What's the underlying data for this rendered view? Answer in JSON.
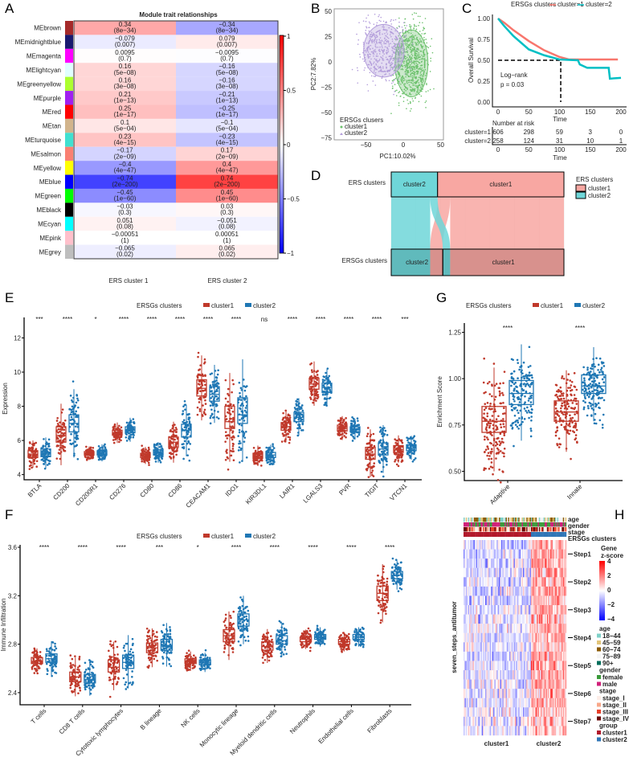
{
  "panels": {
    "a": "A",
    "b": "B",
    "c": "C",
    "d": "D",
    "e": "E",
    "f": "F",
    "g": "G",
    "h": "H"
  },
  "colors": {
    "cluster1": "#c0392b",
    "cluster2": "#1f77b4",
    "surv1": "#f8766d",
    "surv2": "#00bfc4",
    "pca1": "#6cc16c",
    "pca2": "#b39ddb"
  },
  "chart_data": [
    {
      "id": "A",
      "type": "heatmap",
      "title": "Module trait relationships",
      "columns": [
        "ERS cluster 1",
        "ERS cluster 2"
      ],
      "colorbar": {
        "range": [
          -1,
          1
        ],
        "ticks": [
          "1",
          "0.5",
          "0",
          "−0.5",
          "−1"
        ]
      },
      "rows": [
        {
          "name": "MEbrown",
          "color": "#a52a2a",
          "cor": [
            0.34,
            -0.34
          ],
          "labels": [
            "0.34",
            "−0.34"
          ],
          "p": "(8e−34)"
        },
        {
          "name": "MEmidnightblue",
          "color": "#191970",
          "cor": [
            -0.079,
            0.079
          ],
          "labels": [
            "−0.079",
            "0.079"
          ],
          "p": "(0.007)"
        },
        {
          "name": "MEmagenta",
          "color": "#ff00ff",
          "cor": [
            0.0095,
            -0.0095
          ],
          "labels": [
            "0.0095",
            "−0.0095"
          ],
          "p": "(0.7)"
        },
        {
          "name": "MElightcyan",
          "color": "#e0ffff",
          "cor": [
            0.16,
            -0.16
          ],
          "labels": [
            "0.16",
            "−0.16"
          ],
          "p": "(5e−08)"
        },
        {
          "name": "MEgreenyellow",
          "color": "#adff2f",
          "cor": [
            0.16,
            -0.16
          ],
          "labels": [
            "0.16",
            "−0.16"
          ],
          "p": "(3e−08)"
        },
        {
          "name": "MEpurple",
          "color": "#a020f0",
          "cor": [
            0.21,
            -0.21
          ],
          "labels": [
            "0.21",
            "−0.21"
          ],
          "p": "(1e−13)"
        },
        {
          "name": "MEred",
          "color": "#ff0000",
          "cor": [
            0.25,
            -0.25
          ],
          "labels": [
            "0.25",
            "−0.25"
          ],
          "p": "(1e−17)"
        },
        {
          "name": "MEtan",
          "color": "#d2b48c",
          "cor": [
            0.1,
            -0.1
          ],
          "labels": [
            "0.1",
            "−0.1"
          ],
          "p": "(5e−04)"
        },
        {
          "name": "MEturquoise",
          "color": "#40e0d0",
          "cor": [
            0.23,
            -0.23
          ],
          "labels": [
            "0.23",
            "−0.23"
          ],
          "p": "(4e−15)"
        },
        {
          "name": "MEsalmon",
          "color": "#fa8072",
          "cor": [
            -0.17,
            0.17
          ],
          "labels": [
            "−0.17",
            "0.17"
          ],
          "p": "(2e−09)"
        },
        {
          "name": "MEyellow",
          "color": "#ffff00",
          "cor": [
            -0.4,
            0.4
          ],
          "labels": [
            "−0.4",
            "0.4"
          ],
          "p": "(4e−47)"
        },
        {
          "name": "MEblue",
          "color": "#0000ff",
          "cor": [
            -0.74,
            0.74
          ],
          "labels": [
            "−0.74",
            "0.74"
          ],
          "p": "(2e−200)"
        },
        {
          "name": "MEgreen",
          "color": "#00ff00",
          "cor": [
            -0.45,
            0.45
          ],
          "labels": [
            "−0.45",
            "0.45"
          ],
          "p": "(1e−60)"
        },
        {
          "name": "MEblack",
          "color": "#000000",
          "cor": [
            -0.03,
            0.03
          ],
          "labels": [
            "−0.03",
            "0.03"
          ],
          "p": "(0.3)"
        },
        {
          "name": "MEcyan",
          "color": "#00ffff",
          "cor": [
            0.051,
            -0.051
          ],
          "labels": [
            "0.051",
            "−0.051"
          ],
          "p": "(0.08)"
        },
        {
          "name": "MEpink",
          "color": "#ffc0cb",
          "cor": [
            -0.00051,
            0.00051
          ],
          "labels": [
            "−0.00051",
            "0.00051"
          ],
          "p": "(1)"
        },
        {
          "name": "MEgrey",
          "color": "#bebebe",
          "cor": [
            -0.065,
            0.065
          ],
          "labels": [
            "−0.065",
            "0.065"
          ],
          "p": "(0.02)"
        }
      ]
    },
    {
      "id": "B",
      "type": "scatter",
      "xlabel": "PC1:10.02%",
      "ylabel": "PC2:7.82%",
      "xticks": [
        "−50",
        "0",
        "50"
      ],
      "xtick_values": [
        -50,
        0,
        50
      ],
      "yticks": [
        "50",
        "25",
        "0",
        "−25",
        "−50",
        "−75"
      ],
      "ytick_values": [
        50,
        25,
        0,
        -25,
        -50,
        -75
      ],
      "xlim": [
        -95,
        55
      ],
      "ylim": [
        -78,
        51
      ],
      "legend": {
        "title": "ERSGs clusers",
        "items": [
          "cluster1",
          "cluster2"
        ],
        "position": "bottom-left"
      },
      "ellipses": [
        {
          "name": "cluster1",
          "center": [
            11,
            -1.5
          ],
          "radii": [
            22,
            33
          ]
        },
        {
          "name": "cluster2",
          "center": [
            -26,
            11
          ],
          "radii": [
            27,
            26
          ]
        }
      ]
    },
    {
      "id": "C",
      "type": "line",
      "xlabel": "Time",
      "ylabel": "Overall Survival",
      "xticks": [
        "0",
        "50",
        "100",
        "150",
        "200"
      ],
      "xtick_values": [
        0,
        50,
        100,
        150,
        200
      ],
      "yticks": [
        "1.00",
        "0.75",
        "0.50",
        "0.25",
        "0.00"
      ],
      "ytick_values": [
        1,
        0.75,
        0.5,
        0.25,
        0
      ],
      "legend": {
        "title": "ERSGs clusters",
        "items": [
          "cluster=1",
          "cluster=2"
        ],
        "position": "top"
      },
      "annotation": [
        "Log−rank",
        "p = 0.03"
      ],
      "median_time": 102,
      "series": [
        {
          "name": "cluster=1",
          "points": [
            [
              0,
              1
            ],
            [
              10,
              0.95
            ],
            [
              25,
              0.86
            ],
            [
              50,
              0.73
            ],
            [
              75,
              0.62
            ],
            [
              100,
              0.54
            ],
            [
              115,
              0.51
            ],
            [
              150,
              0.51
            ],
            [
              195,
              0.51
            ]
          ]
        },
        {
          "name": "cluster=2",
          "points": [
            [
              0,
              1
            ],
            [
              10,
              0.91
            ],
            [
              25,
              0.79
            ],
            [
              50,
              0.63
            ],
            [
              75,
              0.56
            ],
            [
              100,
              0.51
            ],
            [
              130,
              0.5
            ],
            [
              133,
              0.45
            ],
            [
              145,
              0.41
            ],
            [
              180,
              0.41
            ],
            [
              182,
              0.28
            ],
            [
              200,
              0.29
            ]
          ]
        }
      ],
      "risk_table": {
        "title": "Number at risk",
        "xlabel": "Time",
        "rows": [
          {
            "label": "cluster=1",
            "values": [
              "606",
              "298",
              "59",
              "3",
              "0"
            ]
          },
          {
            "label": "cluster=2",
            "values": [
              "258",
              "124",
              "31",
              "10",
              "1"
            ]
          }
        ]
      }
    },
    {
      "id": "D",
      "type": "sankey",
      "axes": [
        "ERS clusters",
        "ERSGs clusters"
      ],
      "legend": {
        "title": "ERS clusters",
        "items": [
          "cluster1",
          "cluster2"
        ]
      },
      "nodes_top": [
        "cluster2",
        "cluster1"
      ],
      "nodes_bottom": [
        "cluster2",
        "cluster1"
      ],
      "flows": [
        {
          "from": "cluster2",
          "to": "cluster2",
          "n": 195
        },
        {
          "from": "cluster2",
          "to": "cluster1",
          "n": 37
        },
        {
          "from": "cluster1",
          "to": "cluster2",
          "n": 63
        },
        {
          "from": "cluster1",
          "to": "cluster1",
          "n": 569
        }
      ]
    },
    {
      "id": "E",
      "type": "box",
      "ylabel": "Expression",
      "yticks": [
        "4",
        "6",
        "8",
        "10",
        "12"
      ],
      "ytick_values": [
        4,
        6,
        8,
        10,
        12
      ],
      "ylim": [
        3.7,
        13.2
      ],
      "legend": {
        "title": "ERSGs clusters",
        "items": [
          "cluster1",
          "cluster2"
        ]
      },
      "categories": [
        "BTLA",
        "CD200",
        "CD200R1",
        "CD276",
        "CD80",
        "CD86",
        "CEACAM1",
        "IDO1",
        "KIR3DL1",
        "LAIR1",
        "LGALS3",
        "PVR",
        "TIGIT",
        "VTCN1"
      ],
      "significance": [
        "***",
        "****",
        "*",
        "****",
        "****",
        "****",
        "****",
        "****",
        "ns",
        "****",
        "****",
        "****",
        "****",
        "***"
      ],
      "series": [
        {
          "name": "cluster1",
          "quartiles": [
            [
              5.0,
              5.2,
              5.4
            ],
            [
              5.9,
              6.3,
              6.8
            ],
            [
              5.15,
              5.25,
              5.35
            ],
            [
              6.3,
              6.45,
              6.6
            ],
            [
              5.0,
              5.1,
              5.25
            ],
            [
              5.6,
              5.9,
              6.2
            ],
            [
              8.6,
              9.05,
              9.55
            ],
            [
              6.7,
              7.1,
              8.0
            ],
            [
              4.95,
              5.1,
              5.25
            ],
            [
              6.6,
              6.8,
              7.05
            ],
            [
              9.0,
              9.3,
              9.65
            ],
            [
              6.55,
              6.7,
              6.9
            ],
            [
              4.9,
              5.2,
              5.6
            ],
            [
              5.3,
              5.45,
              5.7
            ]
          ]
        },
        {
          "name": "cluster2",
          "quartiles": [
            [
              5.05,
              5.3,
              5.5
            ],
            [
              6.5,
              7.0,
              7.5
            ],
            [
              5.15,
              5.3,
              5.4
            ],
            [
              6.45,
              6.6,
              6.8
            ],
            [
              5.15,
              5.3,
              5.45
            ],
            [
              6.2,
              6.6,
              6.95
            ],
            [
              8.3,
              8.7,
              9.15
            ],
            [
              7.0,
              7.5,
              8.5
            ],
            [
              5.0,
              5.15,
              5.3
            ],
            [
              7.1,
              7.35,
              7.65
            ],
            [
              8.8,
              9.1,
              9.35
            ],
            [
              6.5,
              6.65,
              6.8
            ],
            [
              5.15,
              5.5,
              5.85
            ],
            [
              5.4,
              5.55,
              5.75
            ]
          ]
        }
      ]
    },
    {
      "id": "F",
      "type": "box",
      "ylabel": "Immune Infiltration",
      "yticks": [
        "2.4",
        "2.8",
        "3.2",
        "3.6"
      ],
      "ytick_values": [
        2.4,
        2.8,
        3.2,
        3.6
      ],
      "ylim": [
        2.3,
        3.62
      ],
      "legend": {
        "title": "ERSGs clusters",
        "items": [
          "cluster1",
          "cluster2"
        ]
      },
      "categories": [
        "T cells",
        "CD8 T cells",
        "Cytotoxic lymphocytes",
        "B lineage",
        "NK cells",
        "Monocytic lineage",
        "Myeloid dendritic cells",
        "Neutrophils",
        "Endothelial cells",
        "Fibroblasts"
      ],
      "significance": [
        "****",
        "****",
        "****",
        "***",
        "*",
        "****",
        "****",
        "****",
        "****",
        "****"
      ],
      "series": [
        {
          "name": "cluster1",
          "quartiles": [
            [
              2.64,
              2.66,
              2.69
            ],
            [
              2.49,
              2.53,
              2.57
            ],
            [
              2.57,
              2.61,
              2.67
            ],
            [
              2.73,
              2.77,
              2.81
            ],
            [
              2.64,
              2.66,
              2.68
            ],
            [
              2.82,
              2.87,
              2.92
            ],
            [
              2.75,
              2.78,
              2.82
            ],
            [
              2.82,
              2.84,
              2.86
            ],
            [
              2.8,
              2.82,
              2.84
            ],
            [
              3.16,
              3.22,
              3.28
            ]
          ]
        },
        {
          "name": "cluster2",
          "quartiles": [
            [
              2.65,
              2.68,
              2.72
            ],
            [
              2.48,
              2.51,
              2.55
            ],
            [
              2.6,
              2.65,
              2.71
            ],
            [
              2.75,
              2.79,
              2.84
            ],
            [
              2.63,
              2.65,
              2.67
            ],
            [
              2.95,
              3.0,
              3.05
            ],
            [
              2.8,
              2.83,
              2.87
            ],
            [
              2.84,
              2.86,
              2.88
            ],
            [
              2.84,
              2.86,
              2.88
            ],
            [
              3.34,
              3.37,
              3.4
            ]
          ]
        }
      ]
    },
    {
      "id": "G",
      "type": "box",
      "ylabel": "Enrichment Score",
      "yticks": [
        "0.50",
        "0.75",
        "1.00",
        "1.25"
      ],
      "ytick_values": [
        0.5,
        0.75,
        1.0,
        1.25
      ],
      "ylim": [
        0.45,
        1.3
      ],
      "legend": {
        "title": "ERSGs clusters",
        "items": [
          "cluster1",
          "cluster2"
        ]
      },
      "categories": [
        "Adaptive",
        "Innate"
      ],
      "significance": [
        "****",
        "****"
      ],
      "series": [
        {
          "name": "cluster1",
          "quartiles": [
            [
              0.71,
              0.77,
              0.85
            ],
            [
              0.77,
              0.82,
              0.88
            ]
          ]
        },
        {
          "name": "cluster2",
          "quartiles": [
            [
              0.86,
              0.92,
              0.99
            ],
            [
              0.92,
              0.96,
              1.02
            ]
          ]
        }
      ]
    },
    {
      "id": "H",
      "type": "heatmap",
      "ylabel": "seven_steps_antitumor",
      "columns": [
        "cluster1",
        "cluster2"
      ],
      "annotation_rows": [
        "age",
        "gender",
        "stage",
        "ERSGs clusters"
      ],
      "rows": [
        "Step1",
        "Step2",
        "Step3",
        "Step4",
        "Step5",
        "Step6",
        "Step7"
      ],
      "mean_z": [
        [
          -0.4,
          0.8
        ],
        [
          -0.3,
          0.9
        ],
        [
          -0.35,
          0.8
        ],
        [
          -0.2,
          0.7
        ],
        [
          -0.3,
          0.9
        ],
        [
          -0.25,
          0.8
        ],
        [
          -0.2,
          0.7
        ]
      ],
      "colorbar": {
        "title": [
          "Gene",
          "z-score"
        ],
        "ticks": [
          "4",
          "2",
          "0",
          "−2",
          "−4"
        ],
        "range": [
          -4,
          4
        ]
      },
      "legends": [
        {
          "title": "age",
          "items": [
            {
              "label": "18−44",
              "color": "#7fd1c8"
            },
            {
              "label": "45−59",
              "color": "#e3c57a"
            },
            {
              "label": "60−74",
              "color": "#8b5a00"
            },
            {
              "label": "75−89",
              "color": "#f5f5f5"
            },
            {
              "label": "90+",
              "color": "#006d5b"
            }
          ]
        },
        {
          "title": "gender",
          "items": [
            {
              "label": "female",
              "color": "#3a9a3a"
            },
            {
              "label": "male",
              "color": "#d0207a"
            }
          ]
        },
        {
          "title": "stage",
          "items": [
            {
              "label": "stage_I",
              "color": "#fdeee8"
            },
            {
              "label": "stage_II",
              "color": "#f8a88a"
            },
            {
              "label": "stage_III",
              "color": "#e8402a"
            },
            {
              "label": "stage_IV",
              "color": "#6b0a0a"
            }
          ]
        },
        {
          "title": "group",
          "items": [
            {
              "label": "cluster1",
              "color": "#b2182b"
            },
            {
              "label": "cluster2",
              "color": "#2e75b6"
            }
          ]
        }
      ]
    }
  ]
}
